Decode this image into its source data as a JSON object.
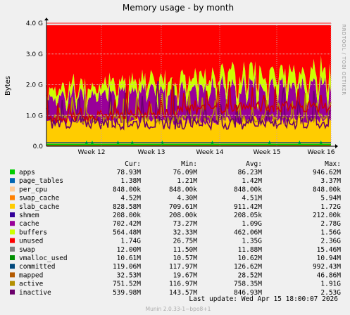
{
  "chart_data": {
    "type": "area",
    "title": "Memory usage - by month",
    "ylabel": "Bytes",
    "side_label": "RRDTOOL / TOBI OETIKER",
    "y_ticks": [
      "0.0",
      "1.0 G",
      "2.0 G",
      "3.0 G",
      "4.0 G"
    ],
    "ylim": [
      0,
      4.0
    ],
    "y_unit": "G",
    "x_ticks": [
      "Week 12",
      "Week 13",
      "Week 14",
      "Week 15",
      "Week 16"
    ],
    "columns": [
      "Cur:",
      "Min:",
      "Avg:",
      "Max:"
    ],
    "series": [
      {
        "name": "apps",
        "color": "#00cc00",
        "kind": "stack",
        "cur": "78.93M",
        "min": "76.09M",
        "avg": "86.23M",
        "max": "946.62M",
        "value": 0.08
      },
      {
        "name": "page_tables",
        "color": "#0066b3",
        "kind": "stack",
        "cur": "1.38M",
        "min": "1.21M",
        "avg": "1.42M",
        "max": "3.37M",
        "value": 0.0014
      },
      {
        "name": "per_cpu",
        "color": "#ffcc99",
        "kind": "stack",
        "cur": "848.00k",
        "min": "848.00k",
        "avg": "848.00k",
        "max": "848.00k",
        "value": 0.0008
      },
      {
        "name": "swap_cache",
        "color": "#ff8000",
        "kind": "stack",
        "cur": "4.52M",
        "min": "4.30M",
        "avg": "4.51M",
        "max": "5.94M",
        "value": 0.0045
      },
      {
        "name": "slab_cache",
        "color": "#ffcc00",
        "kind": "stack",
        "cur": "828.58M",
        "min": "709.61M",
        "avg": "911.42M",
        "max": "1.72G",
        "value": 0.83
      },
      {
        "name": "shmem",
        "color": "#330099",
        "kind": "stack",
        "cur": "208.00k",
        "min": "208.00k",
        "avg": "208.05k",
        "max": "212.00k",
        "value": 0.0002
      },
      {
        "name": "cache",
        "color": "#990099",
        "kind": "stack",
        "cur": "702.42M",
        "min": "73.27M",
        "avg": "1.09G",
        "max": "2.78G",
        "value": 0.7
      },
      {
        "name": "buffers",
        "color": "#ccff00",
        "kind": "stack",
        "cur": "564.48M",
        "min": "32.33M",
        "avg": "462.06M",
        "max": "1.56G",
        "value": 0.56
      },
      {
        "name": "unused",
        "color": "#ff0000",
        "kind": "stack",
        "cur": "1.74G",
        "min": "26.75M",
        "avg": "1.35G",
        "max": "2.36G",
        "value": 1.74
      },
      {
        "name": "swap",
        "color": "#808080",
        "kind": "stack",
        "cur": "12.00M",
        "min": "11.50M",
        "avg": "11.88M",
        "max": "15.46M",
        "value": 0.012
      },
      {
        "name": "vmalloc_used",
        "color": "#008f00",
        "kind": "line",
        "cur": "10.61M",
        "min": "10.57M",
        "avg": "10.62M",
        "max": "10.94M",
        "value": 0.0106
      },
      {
        "name": "committed",
        "color": "#00487d",
        "kind": "line",
        "cur": "119.06M",
        "min": "117.97M",
        "avg": "126.62M",
        "max": "992.43M",
        "value": 0.119
      },
      {
        "name": "mapped",
        "color": "#b35a00",
        "kind": "line",
        "cur": "32.53M",
        "min": "19.67M",
        "avg": "28.52M",
        "max": "46.86M",
        "value": 0.0325
      },
      {
        "name": "active",
        "color": "#b38f00",
        "kind": "line",
        "cur": "751.52M",
        "min": "116.97M",
        "avg": "758.35M",
        "max": "1.91G",
        "value": 0.75
      },
      {
        "name": "inactive",
        "color": "#6b006b",
        "kind": "line",
        "cur": "539.98M",
        "min": "143.57M",
        "avg": "846.93M",
        "max": "2.53G",
        "value": 0.54
      }
    ],
    "grid": true,
    "legend_position": "bottom"
  },
  "footer": {
    "last_update": "Last update: Wed Apr 15 18:00:07 2026",
    "version": "Munin 2.0.33-1~bpo8+1"
  }
}
